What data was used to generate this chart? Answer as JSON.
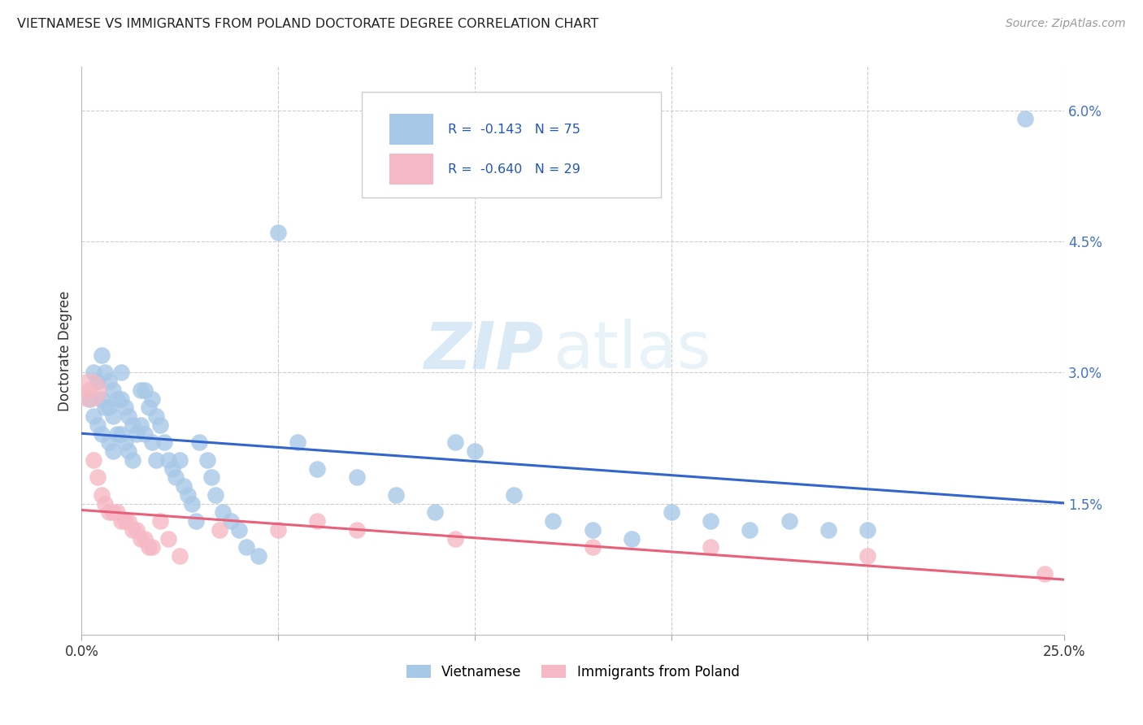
{
  "title": "VIETNAMESE VS IMMIGRANTS FROM POLAND DOCTORATE DEGREE CORRELATION CHART",
  "source": "Source: ZipAtlas.com",
  "ylabel": "Doctorate Degree",
  "xlim": [
    0.0,
    0.25
  ],
  "ylim": [
    0.0,
    0.065
  ],
  "xticks": [
    0.0,
    0.05,
    0.1,
    0.15,
    0.2,
    0.25
  ],
  "yticks": [
    0.0,
    0.015,
    0.03,
    0.045,
    0.06
  ],
  "ytick_labels": [
    "",
    "1.5%",
    "3.0%",
    "4.5%",
    "6.0%"
  ],
  "xtick_labels": [
    "0.0%",
    "",
    "",
    "",
    "",
    "25.0%"
  ],
  "legend1_r": "-0.143",
  "legend1_n": "75",
  "legend2_r": "-0.640",
  "legend2_n": "29",
  "viet_color": "#A8C8E8",
  "poland_color": "#F5B8C4",
  "viet_line_color": "#3366CC",
  "poland_line_color": "#E8607A",
  "watermark_zip": "ZIP",
  "watermark_atlas": "atlas",
  "viet_x": [
    0.002,
    0.003,
    0.003,
    0.004,
    0.004,
    0.005,
    0.005,
    0.005,
    0.006,
    0.006,
    0.007,
    0.007,
    0.007,
    0.008,
    0.008,
    0.008,
    0.009,
    0.009,
    0.01,
    0.01,
    0.01,
    0.011,
    0.011,
    0.012,
    0.012,
    0.013,
    0.013,
    0.014,
    0.015,
    0.015,
    0.016,
    0.016,
    0.017,
    0.018,
    0.018,
    0.019,
    0.019,
    0.02,
    0.021,
    0.022,
    0.023,
    0.024,
    0.025,
    0.026,
    0.027,
    0.028,
    0.029,
    0.03,
    0.032,
    0.033,
    0.034,
    0.036,
    0.038,
    0.04,
    0.042,
    0.045,
    0.05,
    0.055,
    0.06,
    0.07,
    0.08,
    0.09,
    0.095,
    0.1,
    0.11,
    0.12,
    0.13,
    0.14,
    0.15,
    0.16,
    0.17,
    0.18,
    0.19,
    0.2,
    0.24
  ],
  "viet_y": [
    0.027,
    0.03,
    0.025,
    0.029,
    0.024,
    0.032,
    0.027,
    0.023,
    0.03,
    0.026,
    0.029,
    0.026,
    0.022,
    0.028,
    0.025,
    0.021,
    0.027,
    0.023,
    0.03,
    0.027,
    0.023,
    0.026,
    0.022,
    0.025,
    0.021,
    0.024,
    0.02,
    0.023,
    0.028,
    0.024,
    0.028,
    0.023,
    0.026,
    0.027,
    0.022,
    0.025,
    0.02,
    0.024,
    0.022,
    0.02,
    0.019,
    0.018,
    0.02,
    0.017,
    0.016,
    0.015,
    0.013,
    0.022,
    0.02,
    0.018,
    0.016,
    0.014,
    0.013,
    0.012,
    0.01,
    0.009,
    0.046,
    0.022,
    0.019,
    0.018,
    0.016,
    0.014,
    0.022,
    0.021,
    0.016,
    0.013,
    0.012,
    0.011,
    0.014,
    0.013,
    0.012,
    0.013,
    0.012,
    0.012,
    0.059
  ],
  "poland_x": [
    0.002,
    0.003,
    0.004,
    0.005,
    0.006,
    0.007,
    0.008,
    0.009,
    0.01,
    0.011,
    0.012,
    0.013,
    0.014,
    0.015,
    0.016,
    0.017,
    0.018,
    0.02,
    0.022,
    0.025,
    0.035,
    0.05,
    0.06,
    0.07,
    0.095,
    0.13,
    0.16,
    0.2,
    0.245
  ],
  "poland_y": [
    0.028,
    0.02,
    0.018,
    0.016,
    0.015,
    0.014,
    0.014,
    0.014,
    0.013,
    0.013,
    0.013,
    0.012,
    0.012,
    0.011,
    0.011,
    0.01,
    0.01,
    0.013,
    0.011,
    0.009,
    0.012,
    0.012,
    0.013,
    0.012,
    0.011,
    0.01,
    0.01,
    0.009,
    0.007
  ]
}
